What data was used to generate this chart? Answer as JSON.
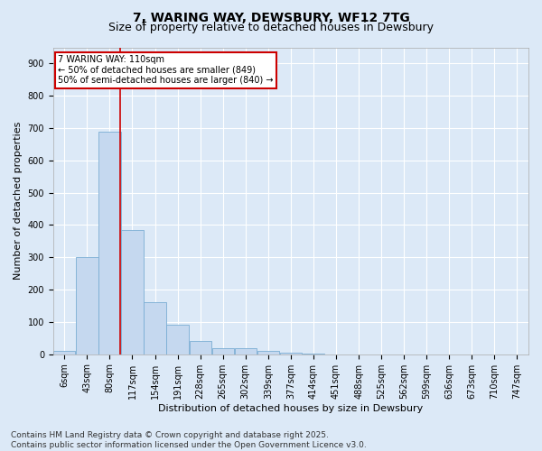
{
  "title_line1": "7, WARING WAY, DEWSBURY, WF12 7TG",
  "title_line2": "Size of property relative to detached houses in Dewsbury",
  "xlabel": "Distribution of detached houses by size in Dewsbury",
  "ylabel": "Number of detached properties",
  "categories": [
    "6sqm",
    "43sqm",
    "80sqm",
    "117sqm",
    "154sqm",
    "191sqm",
    "228sqm",
    "265sqm",
    "302sqm",
    "339sqm",
    "377sqm",
    "414sqm",
    "451sqm",
    "488sqm",
    "525sqm",
    "562sqm",
    "599sqm",
    "636sqm",
    "673sqm",
    "710sqm",
    "747sqm"
  ],
  "bar_values": [
    10,
    300,
    690,
    385,
    160,
    90,
    40,
    20,
    18,
    10,
    5,
    2,
    0,
    0,
    0,
    0,
    0,
    0,
    0,
    0,
    0
  ],
  "bar_color": "#c5d8ef",
  "bar_edge_color": "#7aadd4",
  "vline_x_index": 2.48,
  "vline_color": "#cc0000",
  "annotation_text": "7 WARING WAY: 110sqm\n← 50% of detached houses are smaller (849)\n50% of semi-detached houses are larger (840) →",
  "annotation_box_color": "#ffffff",
  "annotation_box_edge": "#cc0000",
  "ylim": [
    0,
    950
  ],
  "yticks": [
    0,
    100,
    200,
    300,
    400,
    500,
    600,
    700,
    800,
    900
  ],
  "footer_text": "Contains HM Land Registry data © Crown copyright and database right 2025.\nContains public sector information licensed under the Open Government Licence v3.0.",
  "bg_color": "#dce9f7",
  "plot_bg_color": "#dce9f7",
  "grid_color": "#ffffff",
  "title_fontsize": 10,
  "subtitle_fontsize": 9,
  "label_fontsize": 8,
  "tick_fontsize": 7,
  "footer_fontsize": 6.5
}
